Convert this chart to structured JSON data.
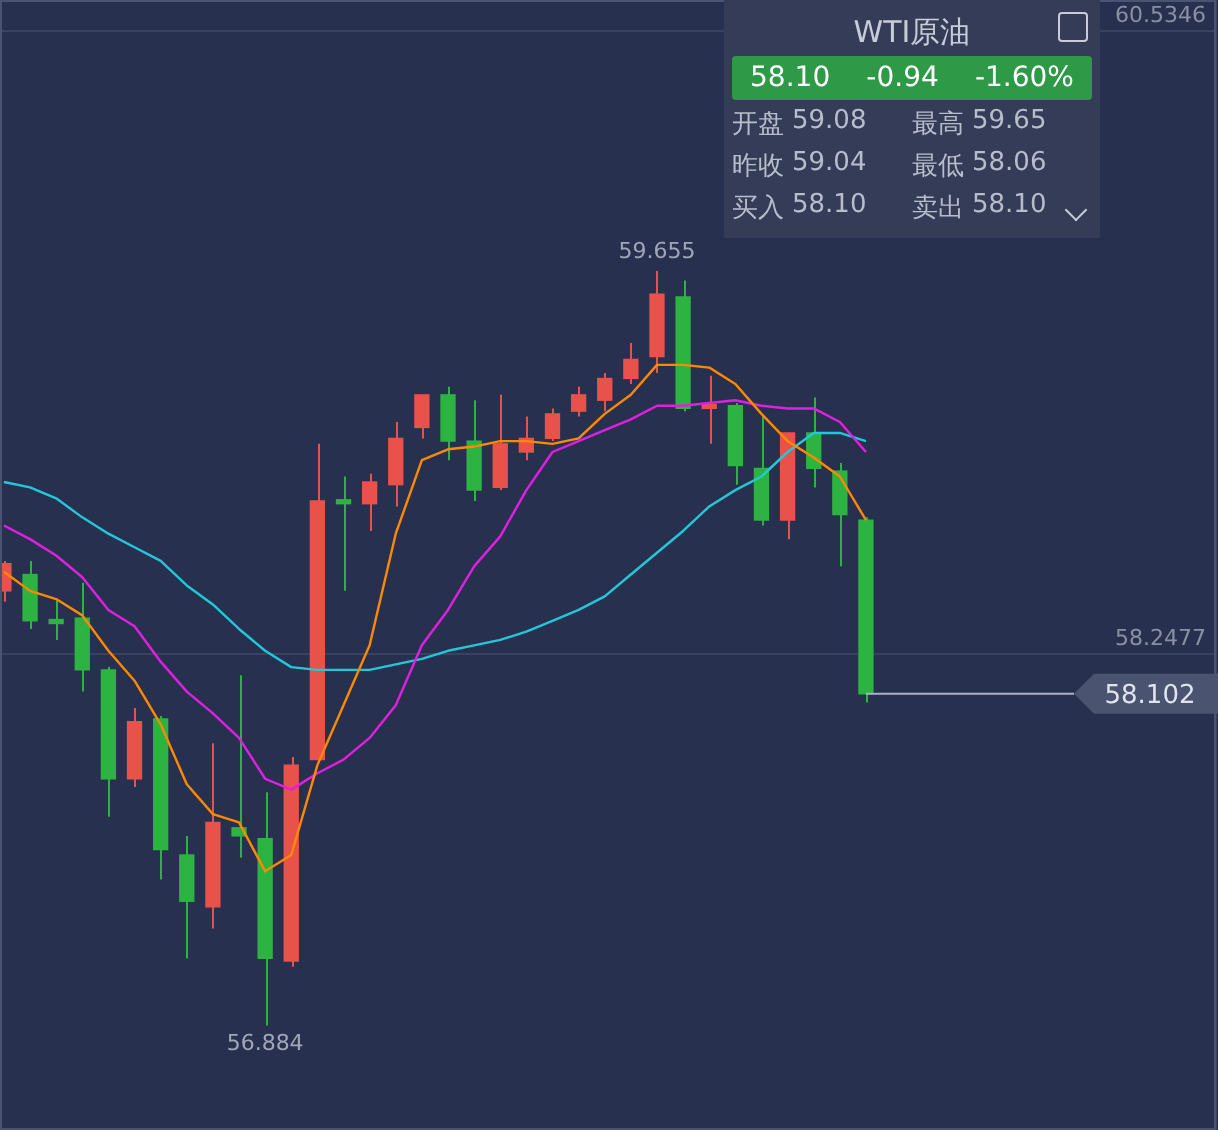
{
  "chart_data": {
    "type": "candlestick",
    "categories": [
      null,
      null,
      null,
      null,
      null,
      null,
      null,
      null,
      null,
      null,
      null,
      null,
      null,
      null,
      null,
      null,
      null,
      null,
      null,
      null,
      null,
      null,
      null,
      null,
      null,
      null,
      null,
      null,
      null,
      null,
      null,
      null,
      null,
      null
    ],
    "ohlc": [
      [
        58.48,
        58.59,
        58.44,
        58.58
      ],
      [
        58.54,
        58.59,
        58.34,
        58.37
      ],
      [
        58.37,
        58.45,
        58.3,
        58.36
      ],
      [
        58.38,
        58.51,
        58.11,
        58.19
      ],
      [
        58.19,
        58.2,
        57.65,
        57.79
      ],
      [
        57.79,
        58.05,
        57.76,
        58.0
      ],
      [
        58.01,
        58.02,
        57.42,
        57.53
      ],
      [
        57.51,
        57.58,
        57.13,
        57.34
      ],
      [
        57.32,
        57.92,
        57.24,
        57.63
      ],
      [
        57.61,
        58.17,
        57.5,
        57.58
      ],
      [
        57.57,
        57.74,
        56.884,
        57.13
      ],
      [
        57.12,
        57.87,
        57.1,
        57.84
      ],
      [
        57.86,
        59.02,
        57.85,
        58.81
      ],
      [
        58.81,
        58.9,
        58.48,
        58.8
      ],
      [
        58.8,
        58.91,
        58.7,
        58.88
      ],
      [
        58.87,
        59.1,
        58.79,
        59.04
      ],
      [
        59.08,
        59.2,
        59.04,
        59.2
      ],
      [
        59.2,
        59.23,
        58.96,
        59.03
      ],
      [
        59.03,
        59.18,
        58.81,
        58.85
      ],
      [
        58.86,
        59.2,
        58.85,
        59.02
      ],
      [
        58.99,
        59.12,
        58.96,
        59.04
      ],
      [
        59.04,
        59.15,
        59.03,
        59.13
      ],
      [
        59.14,
        59.23,
        59.12,
        59.2
      ],
      [
        59.18,
        59.28,
        59.14,
        59.26
      ],
      [
        59.26,
        59.39,
        59.24,
        59.33
      ],
      [
        59.34,
        59.655,
        59.28,
        59.57
      ],
      [
        59.56,
        59.62,
        59.14,
        59.15
      ],
      [
        59.15,
        59.27,
        59.02,
        59.16
      ],
      [
        59.16,
        59.17,
        58.87,
        58.94
      ],
      [
        58.93,
        59.12,
        58.72,
        58.74
      ],
      [
        58.74,
        59.06,
        58.67,
        59.06
      ],
      [
        59.06,
        59.19,
        58.86,
        58.93
      ],
      [
        58.92,
        58.95,
        58.57,
        58.76
      ],
      [
        58.74,
        58.75,
        58.07,
        58.102
      ]
    ],
    "colors": [
      "#e8524a",
      "#2db341",
      "#2db341",
      "#2db341",
      "#2db341",
      "#e8524a",
      "#2db341",
      "#2db341",
      "#e8524a",
      "#2db341",
      "#2db341",
      "#e8524a",
      "#e8524a",
      "#2db341",
      "#e8524a",
      "#e8524a",
      "#e8524a",
      "#2db341",
      "#2db341",
      "#e8524a",
      "#e8524a",
      "#e8524a",
      "#e8524a",
      "#e8524a",
      "#e8524a",
      "#e8524a",
      "#2db341",
      "#e8524a",
      "#2db341",
      "#2db341",
      "#e8524a",
      "#2db341",
      "#2db341",
      "#2db341"
    ],
    "series": [
      {
        "type": "line",
        "color": "#ff8a00",
        "values": [
          58.55,
          58.48,
          58.45,
          58.39,
          58.26,
          58.15,
          57.99,
          57.77,
          57.66,
          57.63,
          57.45,
          57.51,
          57.84,
          58.06,
          58.28,
          58.69,
          58.96,
          59.0,
          59.01,
          59.03,
          59.03,
          59.02,
          59.04,
          59.13,
          59.2,
          59.31,
          59.31,
          59.3,
          59.24,
          59.13,
          59.03,
          58.97,
          58.9,
          58.74
        ]
      },
      {
        "type": "line",
        "color": "#e020e0",
        "values": [
          58.72,
          58.67,
          58.61,
          58.53,
          58.41,
          58.35,
          58.22,
          58.11,
          58.03,
          57.94,
          57.79,
          57.75,
          57.81,
          57.86,
          57.94,
          58.06,
          58.28,
          58.41,
          58.57,
          58.68,
          58.85,
          58.99,
          59.03,
          59.07,
          59.11,
          59.16,
          59.16,
          59.17,
          59.18,
          59.16,
          59.15,
          59.15,
          59.1,
          58.99
        ]
      },
      {
        "type": "line",
        "color": "#22c8d8",
        "values": [
          58.88,
          58.86,
          58.82,
          58.75,
          58.69,
          58.64,
          58.59,
          58.5,
          58.43,
          58.34,
          58.26,
          58.2,
          58.19,
          58.19,
          58.19,
          58.21,
          58.23,
          58.26,
          58.28,
          58.3,
          58.33,
          58.37,
          58.41,
          58.46,
          58.54,
          58.62,
          58.7,
          58.79,
          58.85,
          58.9,
          58.99,
          59.06,
          59.06,
          59.03
        ]
      }
    ],
    "ylim": [
      56.5,
      60.65
    ],
    "yticks": [
      58.2477,
      60.5346
    ],
    "grid": "y",
    "marker": "none",
    "ref_lines": [
      {
        "axis": "y",
        "value": 58.102,
        "label": "58.102",
        "color": "#aab0c0"
      }
    ],
    "annotations": [
      {
        "text": "59.655",
        "y": 59.655
      },
      {
        "text": "56.884",
        "y": 56.884
      },
      "WTI原油",
      "58.10",
      "-0.94",
      "-1.60%",
      "开盘",
      "59.08",
      "最高",
      "59.65",
      "昨收",
      "59.04",
      "最低",
      "58.06",
      "买入",
      "58.10",
      "卖出",
      "58.10"
    ]
  }
}
